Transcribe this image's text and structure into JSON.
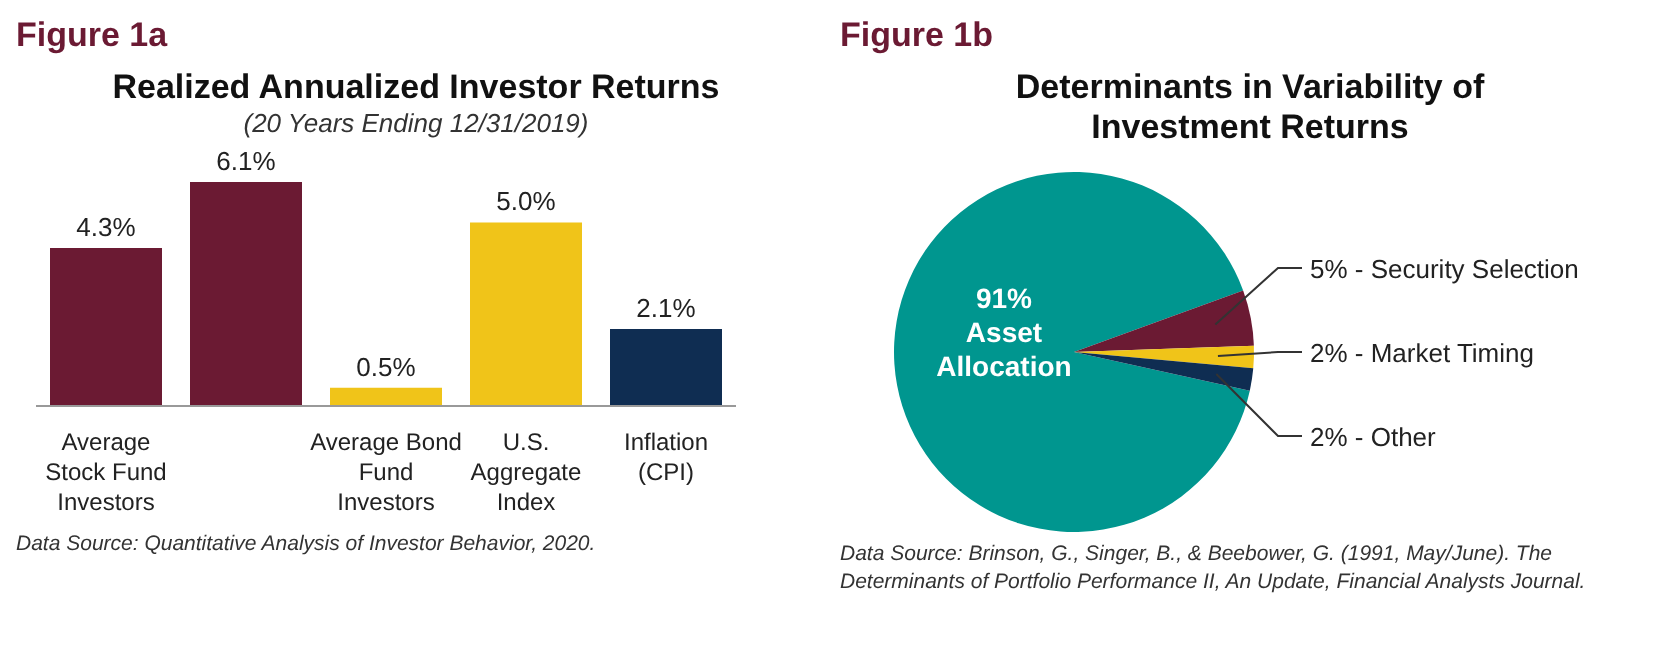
{
  "chart_data": [
    {
      "type": "bar",
      "title": "Realized Annualized Investor Returns",
      "subtitle": "(20 Years Ending 12/31/2019)",
      "categories": [
        "Average Stock Fund Investors",
        null,
        "Average Bond Fund Investors",
        "U.S. Aggregate Index",
        "Inflation (CPI)"
      ],
      "values": [
        4.3,
        6.1,
        0.5,
        5.0,
        2.1
      ],
      "value_labels": [
        "4.3%",
        "6.1%",
        "0.5%",
        "5.0%",
        "2.1%"
      ],
      "colors": [
        "#6b1a33",
        "#6b1a33",
        "#f0c419",
        "#f0c419",
        "#0f2d52"
      ],
      "tick_labels": "x",
      "annotations": [
        "Figure 1a",
        "Data Source: Quantitative Analysis of Investor Behavior, 2020."
      ]
    },
    {
      "type": "pie",
      "title": "Determinants in Variability of Investment Returns",
      "categories": [
        "Asset Allocation",
        "5% - Security Selection",
        "2% - Market Timing",
        "2% - Other"
      ],
      "values": [
        91,
        5,
        2,
        2
      ],
      "value_labels": [
        "91%",
        null,
        null,
        null
      ],
      "colors": [
        "#00968f",
        "#6b1a33",
        "#f0c419",
        "#0f2d52"
      ],
      "annotations": [
        "Figure 1b",
        "Data Source: Brinson, G., Singer, B., & Beebower, G. (1991, May/June). The Determinants of Portfolio Performance II, An Update, Financial Analysts Journal."
      ]
    }
  ]
}
